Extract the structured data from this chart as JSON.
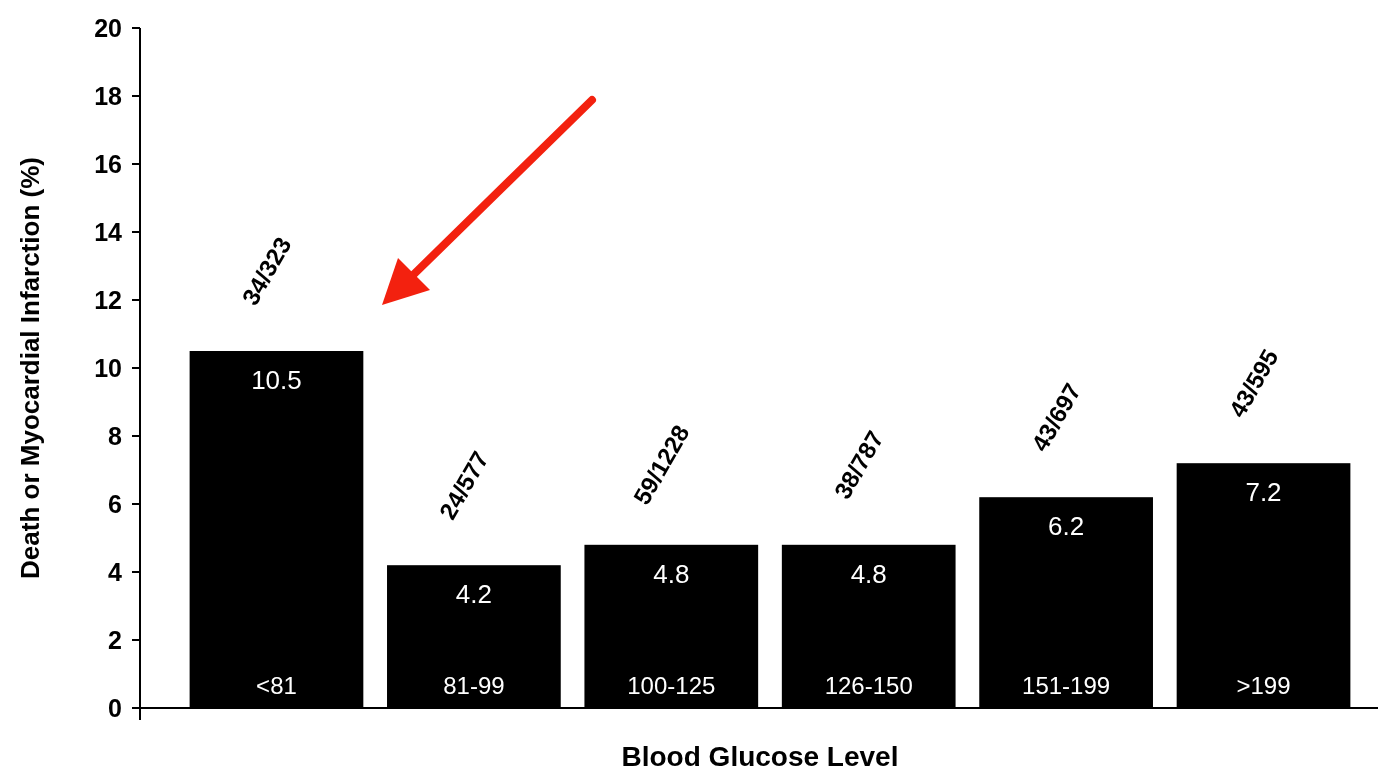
{
  "chart_data": {
    "type": "bar",
    "xlabel": "Blood Glucose Level",
    "ylabel": "Death or Myocardial Infarction (%)",
    "categories": [
      "<81",
      "81-99",
      "100-125",
      "126-150",
      "151-199",
      ">199"
    ],
    "values": [
      10.5,
      4.2,
      4.8,
      4.8,
      6.2,
      7.2
    ],
    "color": "#000000",
    "data_labels": true,
    "ylim": [
      0,
      20
    ],
    "yticks": [
      0,
      2,
      4,
      6,
      8,
      10,
      12,
      14,
      16,
      18,
      20
    ],
    "grid": false,
    "annotations": [
      "34/323",
      "24/577",
      "59/1228",
      "38/787",
      "43/697",
      "43/595"
    ]
  }
}
